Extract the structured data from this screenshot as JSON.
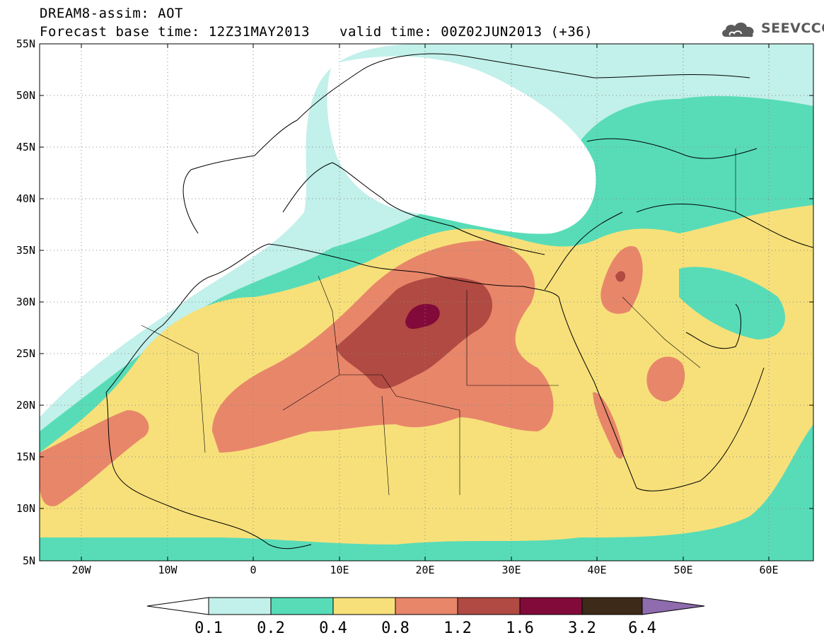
{
  "header": {
    "title": "DREAM8-assim: AOT",
    "base_time": "Forecast base time: 12Z31MAY2013",
    "valid_time": "valid time: 00Z02JUN2013 (+36)"
  },
  "logo": {
    "text": "SEEVCCC",
    "icon": "cloud-logo-icon"
  },
  "map": {
    "lat_labels": [
      "55N",
      "50N",
      "45N",
      "40N",
      "35N",
      "30N",
      "25N",
      "20N",
      "15N",
      "10N",
      "5N"
    ],
    "lon_labels": [
      "20W",
      "10W",
      "0",
      "10E",
      "20E",
      "30E",
      "40E",
      "50E",
      "60E"
    ],
    "lat_range": [
      5,
      55
    ],
    "lon_range": [
      -25,
      65
    ],
    "grid": "dotted"
  },
  "colorbar": {
    "labels": [
      "0.1",
      "0.2",
      "0.4",
      "0.8",
      "1.2",
      "1.6",
      "3.2",
      "6.4"
    ],
    "colors": [
      "#ffffff",
      "#c2f0ea",
      "#58dcb8",
      "#f7e07a",
      "#e8866a",
      "#b04a42",
      "#820a3a",
      "#3d2a18",
      "#8e6cad"
    ]
  }
}
